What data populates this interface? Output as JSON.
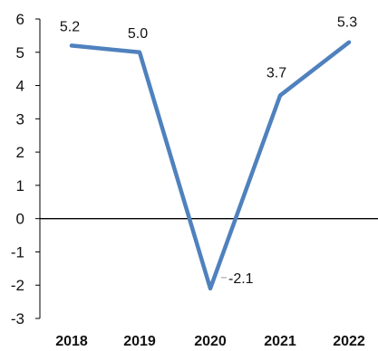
{
  "chart_data": {
    "type": "line",
    "title": "",
    "xlabel": "",
    "ylabel": "",
    "categories": [
      "2018",
      "2019",
      "2020",
      "2021",
      "2022"
    ],
    "series": [
      {
        "values": [
          5.2,
          5.0,
          -2.1,
          3.7,
          5.3
        ],
        "labels": [
          "5.2",
          "5.0",
          "-2.1",
          "3.7",
          "5.3"
        ],
        "color": "#4F81BD"
      }
    ],
    "ylim": [
      -3,
      6
    ],
    "yticks": [
      "-3",
      "-2",
      "-1",
      "0",
      "1",
      "2",
      "3",
      "4",
      "5",
      "6"
    ],
    "grid": false,
    "legend": "none",
    "zero_line_color": "#000000"
  }
}
